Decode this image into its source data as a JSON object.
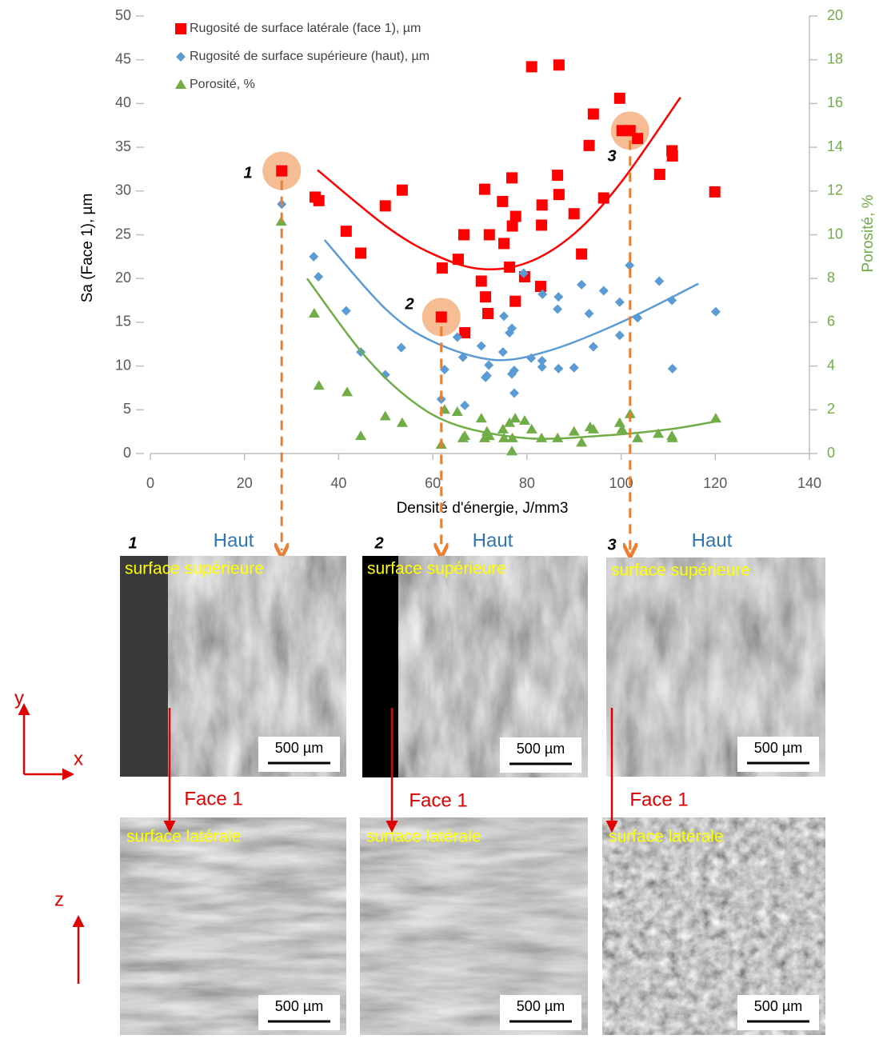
{
  "chart_data": {
    "type": "scatter",
    "xlabel": "Densité d'énergie, J/mm3",
    "ylabel": "Sa (Face 1), µm",
    "y2label": "Porosité, %",
    "xlim": [
      0,
      140
    ],
    "xticks": [
      0,
      20,
      40,
      60,
      80,
      100,
      120,
      140
    ],
    "ylim": [
      0,
      50
    ],
    "yticks": [
      0,
      5,
      10,
      15,
      20,
      25,
      30,
      35,
      40,
      45,
      50
    ],
    "y2lim": [
      0,
      20
    ],
    "y2ticks": [
      0,
      2,
      4,
      6,
      8,
      10,
      12,
      14,
      16,
      18,
      20
    ],
    "legend": "top-left",
    "annotations": [
      "1",
      "2",
      "3"
    ],
    "series": [
      {
        "name": "Rugosité de surface latérale (face 1), µm",
        "color": "#ff0000",
        "marker": "square",
        "x": [
          27.9,
          35.0,
          35.8,
          41.6,
          44.7,
          49.9,
          53.5,
          62.0,
          61.8,
          65.4,
          66.6,
          66.8,
          70.3,
          71.0,
          71.2,
          71.7,
          72.0,
          74.8,
          75.1,
          76.3,
          76.8,
          76.9,
          77.5,
          77.6,
          79.5,
          81.0,
          82.9,
          83.2,
          83.1,
          86.5,
          86.8,
          86.8,
          90.0,
          91.6,
          93.2,
          94.1,
          96.3,
          99.7,
          100.2,
          101.9,
          103.5,
          108.2,
          110.8,
          110.9,
          119.9
        ],
        "values": [
          32.3,
          29.3,
          28.9,
          25.4,
          22.9,
          28.3,
          30.1,
          21.2,
          15.6,
          22.2,
          25.0,
          13.8,
          19.7,
          30.2,
          17.9,
          16.0,
          25.0,
          28.8,
          24.0,
          21.3,
          31.5,
          26.0,
          17.4,
          27.1,
          20.2,
          44.2,
          19.1,
          28.4,
          26.1,
          31.8,
          44.4,
          29.6,
          27.4,
          22.8,
          35.2,
          38.8,
          29.2,
          40.6,
          36.9,
          36.9,
          36.0,
          31.9,
          34.6,
          34.0,
          29.9
        ],
        "trendline": {
          "x": [
            35.5,
            50,
            60,
            70,
            80,
            90,
            100,
            112.6
          ],
          "values": [
            32.4,
            26.0,
            22.8,
            21.1,
            21.8,
            25.1,
            31.0,
            40.7
          ]
        }
      },
      {
        "name": "Rugosité de surface supérieure (haut), µm",
        "color": "#5b9bd5",
        "marker": "diamond",
        "x": [
          27.9,
          34.7,
          35.7,
          41.6,
          44.7,
          49.9,
          53.3,
          61.8,
          62.5,
          65.2,
          66.4,
          66.8,
          70.3,
          71.2,
          71.5,
          71.9,
          74.9,
          75.1,
          76.3,
          76.8,
          76.8,
          77.3,
          77.3,
          79.3,
          80.9,
          83.2,
          83.2,
          83.3,
          86.7,
          86.5,
          86.7,
          90.0,
          91.6,
          93.2,
          94.1,
          96.3,
          99.7,
          99.7,
          101.8,
          103.5,
          108.1,
          110.8,
          110.9,
          120.1
        ],
        "values": [
          28.5,
          22.5,
          20.2,
          16.3,
          11.6,
          9.0,
          12.1,
          6.2,
          9.6,
          13.3,
          11.0,
          5.5,
          12.3,
          8.7,
          8.9,
          10.1,
          11.6,
          15.7,
          13.8,
          14.3,
          9.1,
          9.5,
          6.9,
          20.6,
          10.9,
          10.6,
          9.9,
          18.2,
          17.9,
          16.5,
          9.7,
          9.8,
          19.3,
          16.0,
          12.2,
          18.6,
          17.3,
          13.5,
          21.5,
          15.5,
          19.7,
          17.5,
          9.7,
          16.2
        ],
        "trendline": {
          "x": [
            37,
            50,
            60,
            73,
            85,
            100,
            116.4
          ],
          "values": [
            24.4,
            16.5,
            12.8,
            10.7,
            11.8,
            15.0,
            19.4
          ]
        }
      },
      {
        "name": "Porosité, %",
        "color": "#70ad47",
        "marker": "triangle",
        "axis": "y2",
        "x": [
          27.8,
          34.8,
          35.8,
          41.8,
          44.7,
          49.9,
          53.5,
          61.8,
          62.5,
          65.2,
          66.4,
          66.8,
          70.3,
          71.0,
          71.5,
          72.0,
          74.9,
          75.1,
          76.3,
          76.8,
          76.9,
          77.5,
          79.5,
          81.0,
          83.1,
          86.5,
          90.0,
          91.6,
          93.4,
          94.1,
          99.7,
          100.2,
          101.9,
          103.5,
          107.9,
          110.8,
          110.9,
          120.1
        ],
        "values": [
          10.6,
          6.4,
          3.1,
          2.8,
          0.8,
          1.7,
          1.4,
          0.4,
          2.0,
          1.9,
          0.7,
          0.8,
          1.6,
          0.7,
          1.0,
          0.8,
          1.1,
          0.7,
          1.4,
          0.1,
          0.7,
          1.6,
          1.5,
          1.1,
          0.7,
          0.7,
          1.0,
          0.5,
          1.2,
          1.1,
          1.4,
          1.1,
          1.8,
          0.7,
          0.9,
          0.8,
          0.7,
          1.6
        ],
        "trendline": {
          "x": [
            33.3,
            45,
            55,
            65,
            80,
            95,
            110,
            121
          ],
          "values": [
            8.0,
            4.6,
            2.5,
            1.3,
            0.7,
            0.8,
            1.1,
            1.5
          ]
        }
      }
    ]
  },
  "panels": [
    {
      "label": "1",
      "top": {
        "view": "Haut",
        "caption": "surface supérieure",
        "scale": "500 µm"
      },
      "side": {
        "link": "Face 1",
        "caption": "surface latérale",
        "scale": "500 µm"
      }
    },
    {
      "label": "2",
      "top": {
        "view": "Haut",
        "caption": "surface supérieure",
        "scale": "500 µm"
      },
      "side": {
        "link": "Face 1",
        "caption": "surface latérale",
        "scale": "500 µm"
      }
    },
    {
      "label": "3",
      "top": {
        "view": "Haut",
        "caption": "surface supérieure",
        "scale": "500 µm"
      },
      "side": {
        "link": "Face 1",
        "caption": "surface latérale",
        "scale": "500 µm"
      }
    }
  ],
  "axes_top": {
    "y": "y",
    "x": "x"
  },
  "axes_side": {
    "z": "z"
  }
}
